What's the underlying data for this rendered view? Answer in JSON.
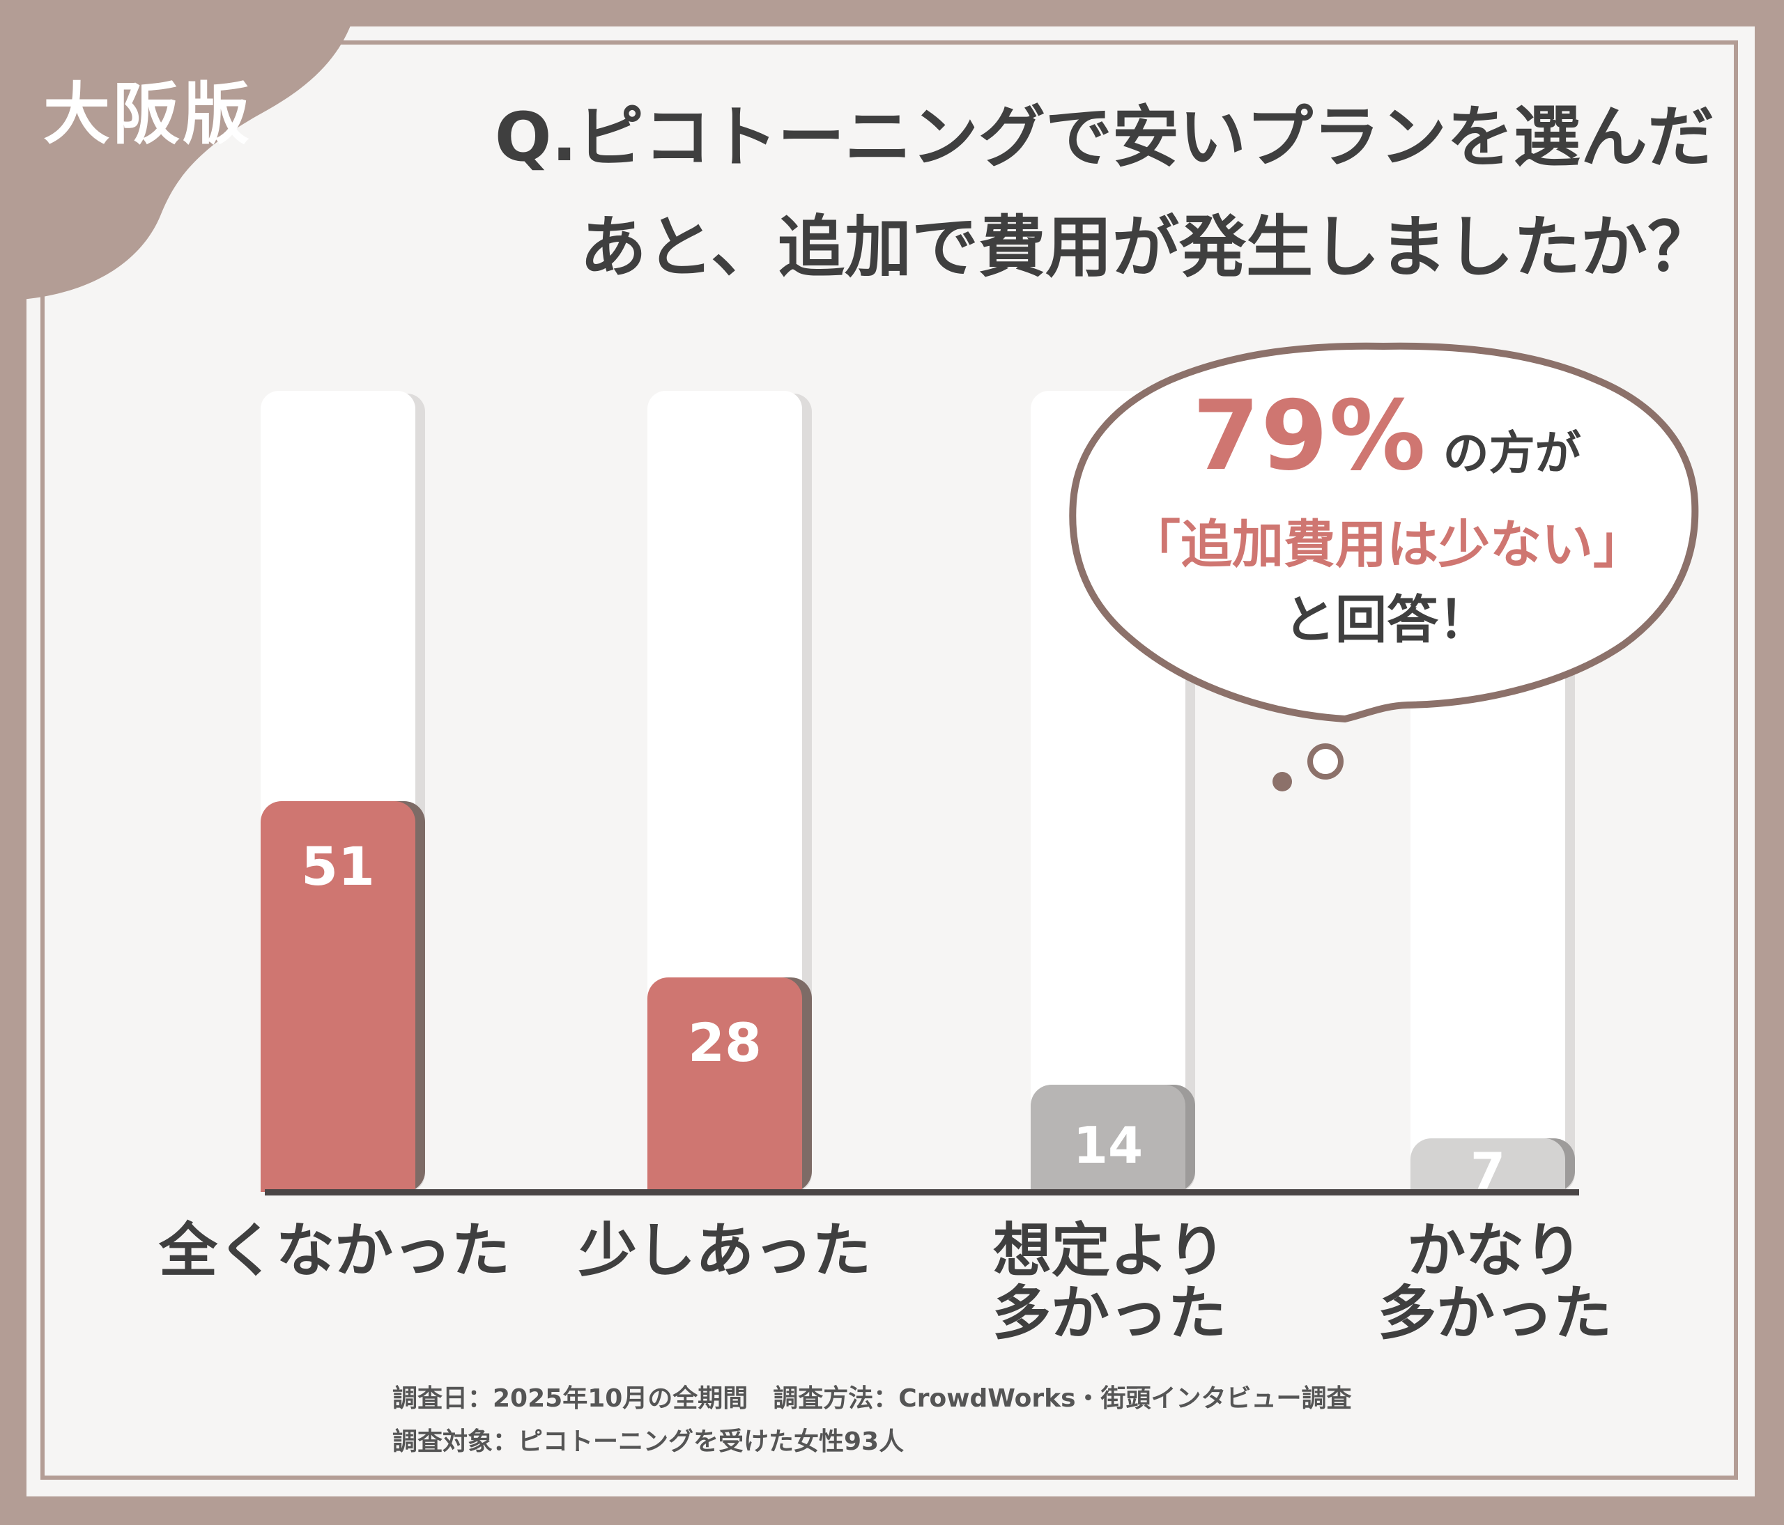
{
  "region_badge": "大阪版",
  "title_lines": [
    "Q.ピコトーニングで安いプランを選んだ",
    "あと、追加で費用が発生しましたか？"
  ],
  "callout": {
    "percent": "79%",
    "suffix": "の方が",
    "quote": "「追加費用は少ない」",
    "answer": "と回答！"
  },
  "chart_data": {
    "type": "bar",
    "categories": [
      "全くなかった",
      "少しあった",
      "想定より多かった",
      "かなり多かった"
    ],
    "category_lines": [
      [
        "全くなかった"
      ],
      [
        "少しあった"
      ],
      [
        "想定より",
        "多かった"
      ],
      [
        "かなり",
        "多かった"
      ]
    ],
    "values": [
      51,
      28,
      14,
      7
    ],
    "data_labels": [
      "51",
      "28",
      "14",
      "7"
    ],
    "colors": [
      "#cf7671",
      "#cf7671",
      "#b7b5b4",
      "#d4d3d2"
    ],
    "grid": false,
    "legend": "none"
  },
  "footnotes": [
    "調査日：2025年10月の全期間　調査方法：CrowdWorks・街頭インタビュー調査",
    "調査対象：ピコトーニングを受けた女性93人"
  ]
}
